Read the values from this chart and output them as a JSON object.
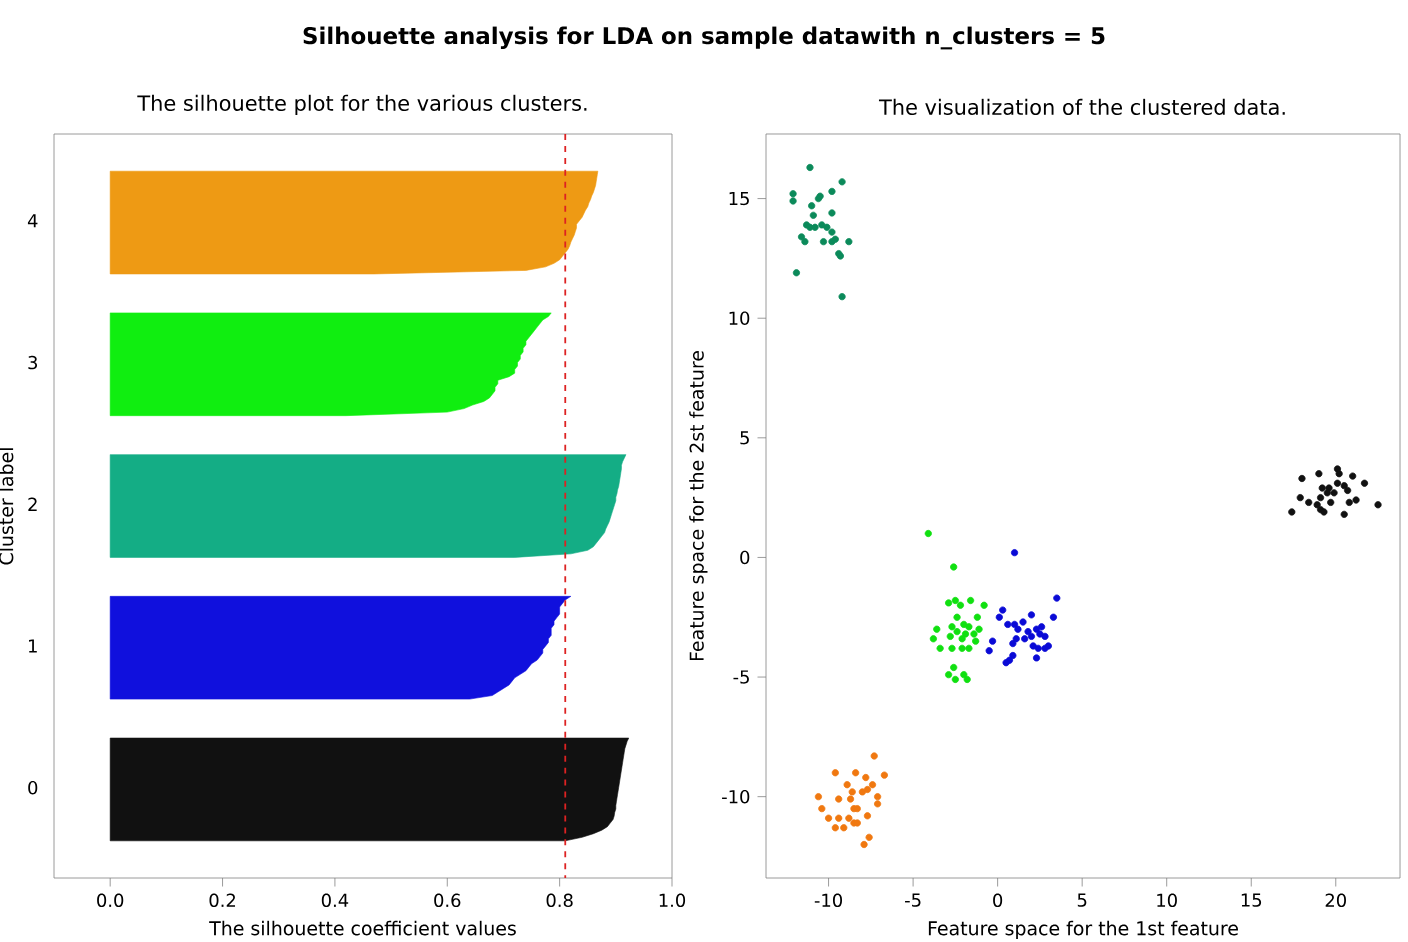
{
  "chart_data": [
    {
      "type": "area",
      "orientation": "horizontal",
      "title": "Silhouette analysis for LDA on sample datawith n_clusters = 5",
      "subtitle": "The silhouette plot for the various clusters.",
      "xlabel": "The silhouette coefficient values",
      "ylabel": "Cluster label",
      "xlim": [
        -0.1,
        1.0
      ],
      "xticks": [
        {
          "value": 0,
          "label": "0.0"
        },
        {
          "value": 0.2,
          "label": "0.2"
        },
        {
          "value": 0.4,
          "label": "0.4"
        },
        {
          "value": 0.6,
          "label": "0.6"
        },
        {
          "value": 0.8,
          "label": "0.8"
        },
        {
          "value": 1.0,
          "label": "1.0"
        }
      ],
      "categories": [
        null,
        null,
        null,
        null,
        null,
        null,
        null,
        null,
        null,
        null,
        null,
        null,
        null,
        null,
        null,
        null,
        null,
        null,
        null,
        null,
        null,
        null,
        null,
        null,
        "4",
        null,
        null,
        null,
        null,
        null,
        null,
        null,
        null,
        null,
        null,
        null,
        null,
        null,
        null,
        null,
        null,
        null,
        null,
        null,
        null,
        null,
        null,
        null,
        null,
        null,
        null,
        null,
        null,
        null,
        null,
        null,
        null,
        null,
        null,
        null,
        null,
        null,
        null,
        null,
        "3",
        null,
        null,
        null,
        null,
        null,
        null,
        null,
        null,
        null,
        null,
        null,
        null,
        null,
        null,
        null,
        null,
        null,
        null,
        null,
        null,
        null,
        null,
        null,
        null,
        null,
        null,
        null,
        null,
        null,
        null,
        null,
        null,
        null,
        null,
        null,
        null,
        null,
        null,
        null,
        "2",
        null,
        null,
        null,
        null,
        null,
        null,
        null,
        null,
        null,
        null,
        null,
        null,
        null,
        null,
        null,
        null,
        null,
        null,
        null,
        null,
        null,
        null,
        null,
        null,
        null,
        null,
        null,
        null,
        null,
        null,
        null,
        null,
        null,
        null,
        null,
        null,
        null,
        null,
        null,
        "1",
        null,
        null,
        null,
        null,
        null,
        null,
        null,
        null,
        null,
        null,
        null,
        null,
        null,
        null,
        null,
        null,
        null,
        null,
        null,
        null,
        null,
        null,
        null,
        null,
        null,
        null,
        null,
        null,
        null,
        null,
        null,
        null,
        null,
        null,
        null,
        null,
        null,
        null,
        null,
        "0",
        null,
        null,
        null,
        null,
        null,
        null,
        null,
        null,
        null,
        null,
        null,
        null,
        null,
        null,
        null,
        null,
        null,
        null,
        null,
        null,
        null,
        null,
        null,
        null,
        null
      ],
      "ref_lines": [
        {
          "axis": "x",
          "value": 0.81,
          "color": "#dd2222",
          "line_style": "dashed"
        }
      ],
      "series": [
        {
          "color": "#ee9a14",
          "values": [
            null,
            null,
            null,
            null,
            null,
            null,
            null,
            null,
            null,
            null,
            0.868,
            0.867,
            0.866,
            0.865,
            0.864,
            0.862,
            0.86,
            0.857,
            0.855,
            0.852,
            0.85,
            0.846,
            0.843,
            0.84,
            0.835,
            0.83,
            0.83,
            0.828,
            0.826,
            0.823,
            0.82,
            0.818,
            0.815,
            0.81,
            0.805,
            0.8,
            0.79,
            0.775,
            0.74,
            0.47,
            null,
            null,
            null,
            null,
            null,
            null,
            null,
            null,
            null,
            null,
            null,
            null,
            null,
            null,
            null,
            null,
            null,
            null,
            null,
            null,
            null,
            null,
            null,
            null,
            null,
            null,
            null,
            null,
            null,
            null,
            null,
            null,
            null,
            null,
            null,
            null,
            null,
            null,
            null,
            null,
            null,
            null,
            null,
            null,
            null,
            null,
            null,
            null,
            null,
            null,
            null,
            null,
            null,
            null,
            null,
            null,
            null,
            null,
            null,
            null,
            null,
            null,
            null,
            null,
            null,
            null,
            null,
            null,
            null,
            null,
            null,
            null,
            null,
            null,
            null,
            null,
            null,
            null,
            null,
            null,
            null,
            null,
            null,
            null,
            null,
            null,
            null,
            null,
            null,
            null,
            null,
            null,
            null,
            null,
            null,
            null,
            null,
            null,
            null,
            null,
            null,
            null,
            null,
            null,
            null,
            null,
            null,
            null,
            null,
            null,
            null,
            null,
            null,
            null,
            null,
            null,
            null,
            null,
            null,
            null,
            null,
            null,
            null,
            null,
            null,
            null,
            null,
            null,
            null,
            null,
            null,
            null,
            null,
            null,
            null,
            null,
            null,
            null,
            null,
            null,
            null,
            null,
            null,
            null,
            null,
            null,
            null,
            null,
            null,
            null,
            null,
            null,
            null,
            null,
            null,
            null,
            null,
            null,
            null,
            null,
            null,
            null,
            null,
            null,
            null,
            null,
            null,
            null,
            null,
            null
          ]
        },
        {
          "color": "#10ee10",
          "values": [
            null,
            null,
            null,
            null,
            null,
            null,
            null,
            null,
            null,
            null,
            null,
            null,
            null,
            null,
            null,
            null,
            null,
            null,
            null,
            null,
            null,
            null,
            null,
            null,
            null,
            null,
            null,
            null,
            null,
            null,
            null,
            null,
            null,
            null,
            null,
            null,
            null,
            null,
            null,
            null,
            null,
            null,
            null,
            null,
            null,
            null,
            null,
            null,
            null,
            null,
            0.785,
            0.78,
            0.77,
            0.765,
            0.76,
            0.755,
            0.75,
            0.745,
            0.74,
            0.74,
            0.735,
            0.735,
            0.73,
            0.73,
            0.725,
            0.725,
            0.72,
            0.72,
            0.71,
            0.69,
            0.69,
            0.685,
            0.685,
            0.68,
            0.675,
            0.665,
            0.645,
            0.63,
            0.6,
            0.42,
            null,
            null,
            null,
            null,
            null,
            null,
            null,
            null,
            null,
            null,
            null,
            null,
            null,
            null,
            null,
            null,
            null,
            null,
            null,
            null,
            null,
            null,
            null,
            null,
            null,
            null,
            null,
            null,
            null,
            null,
            null,
            null,
            null,
            null,
            null,
            null,
            null,
            null,
            null,
            null,
            null,
            null,
            null,
            null,
            null,
            null,
            null,
            null,
            null,
            null,
            null,
            null,
            null,
            null,
            null,
            null,
            null,
            null,
            null,
            null,
            null,
            null,
            null,
            null,
            null,
            null,
            null,
            null,
            null,
            null,
            null,
            null,
            null,
            null,
            null,
            null,
            null,
            null,
            null,
            null,
            null,
            null,
            null,
            null,
            null,
            null,
            null,
            null,
            null,
            null,
            null,
            null,
            null,
            null,
            null,
            null,
            null,
            null,
            null,
            null,
            null,
            null,
            null,
            null,
            null,
            null,
            null,
            null,
            null,
            null,
            null,
            null,
            null,
            null,
            null,
            null,
            null,
            null,
            null,
            null,
            null,
            null,
            null,
            null,
            null,
            null,
            null,
            null,
            null,
            null
          ]
        },
        {
          "color": "#14ad85",
          "values": [
            null,
            null,
            null,
            null,
            null,
            null,
            null,
            null,
            null,
            null,
            null,
            null,
            null,
            null,
            null,
            null,
            null,
            null,
            null,
            null,
            null,
            null,
            null,
            null,
            null,
            null,
            null,
            null,
            null,
            null,
            null,
            null,
            null,
            null,
            null,
            null,
            null,
            null,
            null,
            null,
            null,
            null,
            null,
            null,
            null,
            null,
            null,
            null,
            null,
            null,
            null,
            null,
            null,
            null,
            null,
            null,
            null,
            null,
            null,
            null,
            null,
            null,
            null,
            null,
            null,
            null,
            null,
            null,
            null,
            null,
            null,
            null,
            null,
            null,
            null,
            null,
            null,
            null,
            null,
            null,
            null,
            null,
            null,
            null,
            null,
            null,
            null,
            null,
            null,
            null,
            0.918,
            0.915,
            0.912,
            0.91,
            0.91,
            0.909,
            0.908,
            0.907,
            0.906,
            0.905,
            0.903,
            0.902,
            0.9,
            0.9,
            0.898,
            0.896,
            0.894,
            0.892,
            0.89,
            0.888,
            0.885,
            0.882,
            0.88,
            0.875,
            0.87,
            0.865,
            0.86,
            0.85,
            0.82,
            0.72,
            null,
            null,
            null,
            null,
            null,
            null,
            null,
            null,
            null,
            null,
            null,
            null,
            null,
            null,
            null,
            null,
            null,
            null,
            null,
            null,
            null,
            null,
            null,
            null,
            null,
            null,
            null,
            null,
            null,
            null,
            null,
            null,
            null,
            null,
            null,
            null,
            null,
            null,
            null,
            null,
            null,
            null,
            null,
            null,
            null,
            null,
            null,
            null,
            null,
            null,
            null,
            null,
            null,
            null,
            null,
            null,
            null,
            null,
            null,
            null,
            null,
            null,
            null,
            null,
            null,
            null,
            null,
            null,
            null,
            null,
            null,
            null,
            null,
            null,
            null,
            null,
            null,
            null,
            null,
            null,
            null,
            null,
            null,
            null,
            null,
            null,
            null,
            null,
            null,
            null
          ]
        },
        {
          "color": "#1010dd",
          "values": [
            null,
            null,
            null,
            null,
            null,
            null,
            null,
            null,
            null,
            null,
            null,
            null,
            null,
            null,
            null,
            null,
            null,
            null,
            null,
            null,
            null,
            null,
            null,
            null,
            null,
            null,
            null,
            null,
            null,
            null,
            null,
            null,
            null,
            null,
            null,
            null,
            null,
            null,
            null,
            null,
            null,
            null,
            null,
            null,
            null,
            null,
            null,
            null,
            null,
            null,
            null,
            null,
            null,
            null,
            null,
            null,
            null,
            null,
            null,
            null,
            null,
            null,
            null,
            null,
            null,
            null,
            null,
            null,
            null,
            null,
            null,
            null,
            null,
            null,
            null,
            null,
            null,
            null,
            null,
            null,
            null,
            null,
            null,
            null,
            null,
            null,
            null,
            null,
            null,
            null,
            null,
            null,
            null,
            null,
            null,
            null,
            null,
            null,
            null,
            null,
            null,
            null,
            null,
            null,
            null,
            null,
            null,
            null,
            null,
            null,
            null,
            null,
            null,
            null,
            null,
            null,
            null,
            null,
            null,
            null,
            null,
            null,
            null,
            null,
            null,
            null,
            null,
            null,
            null,
            null,
            0.82,
            0.81,
            0.805,
            0.8,
            0.8,
            0.8,
            0.795,
            0.79,
            0.79,
            0.785,
            0.785,
            0.785,
            0.78,
            0.78,
            0.775,
            0.77,
            0.77,
            0.765,
            0.76,
            0.75,
            0.745,
            0.74,
            0.73,
            0.72,
            0.715,
            0.71,
            0.7,
            0.69,
            0.68,
            0.64,
            null,
            null,
            null,
            null,
            null,
            null,
            null,
            null,
            null,
            null,
            null,
            null,
            null,
            null,
            null,
            null,
            null,
            null,
            null,
            null,
            null,
            null,
            null,
            null,
            null,
            null,
            null,
            null,
            null,
            null,
            null,
            null,
            null,
            null,
            null,
            null,
            null,
            null,
            null,
            null,
            null,
            null,
            null,
            null,
            null,
            null,
            null,
            null,
            null,
            null
          ]
        },
        {
          "color": "#111111",
          "values": [
            null,
            null,
            null,
            null,
            null,
            null,
            null,
            null,
            null,
            null,
            null,
            null,
            null,
            null,
            null,
            null,
            null,
            null,
            null,
            null,
            null,
            null,
            null,
            null,
            null,
            null,
            null,
            null,
            null,
            null,
            null,
            null,
            null,
            null,
            null,
            null,
            null,
            null,
            null,
            null,
            null,
            null,
            null,
            null,
            null,
            null,
            null,
            null,
            null,
            null,
            null,
            null,
            null,
            null,
            null,
            null,
            null,
            null,
            null,
            null,
            null,
            null,
            null,
            null,
            null,
            null,
            null,
            null,
            null,
            null,
            null,
            null,
            null,
            null,
            null,
            null,
            null,
            null,
            null,
            null,
            null,
            null,
            null,
            null,
            null,
            null,
            null,
            null,
            null,
            null,
            null,
            null,
            null,
            null,
            null,
            null,
            null,
            null,
            null,
            null,
            null,
            null,
            null,
            null,
            null,
            null,
            null,
            null,
            null,
            null,
            null,
            null,
            null,
            null,
            null,
            null,
            null,
            null,
            null,
            null,
            null,
            null,
            null,
            null,
            null,
            null,
            null,
            null,
            null,
            null,
            null,
            null,
            null,
            null,
            null,
            null,
            null,
            null,
            null,
            null,
            null,
            null,
            null,
            null,
            null,
            null,
            null,
            null,
            null,
            null,
            null,
            null,
            null,
            null,
            null,
            null,
            null,
            null,
            null,
            null,
            null,
            null,
            null,
            null,
            null,
            null,
            null,
            null,
            null,
            null,
            0.923,
            0.92,
            0.918,
            0.916,
            0.915,
            0.914,
            0.913,
            0.912,
            0.911,
            0.91,
            0.909,
            0.908,
            0.907,
            0.906,
            0.905,
            0.904,
            0.903,
            0.902,
            0.901,
            0.9,
            0.9,
            0.898,
            0.897,
            0.895,
            0.89,
            0.885,
            0.875,
            0.86,
            0.84,
            0.81,
            null,
            null,
            null,
            null,
            null,
            null,
            null,
            null,
            null,
            null
          ]
        }
      ]
    },
    {
      "type": "scatter",
      "title": "The visualization of the clustered data.",
      "xlabel": "Feature space for the 1st feature",
      "ylabel": "Feature space for the 2st feature",
      "xlim": [
        -13.7,
        23.8
      ],
      "ylim": [
        -13.4,
        17.7
      ],
      "xticks": [
        -10,
        -5,
        0,
        5,
        10,
        15,
        20
      ],
      "yticks": [
        -10,
        -5,
        0,
        5,
        10,
        15
      ],
      "marker": "circle",
      "series": [
        {
          "color": "#111111",
          "x": [
            18.0,
            19.0,
            20.1,
            20.2,
            21.0,
            21.7,
            17.9,
            18.4,
            19.1,
            19.2,
            19.6,
            19.9,
            20.1,
            20.5,
            20.7,
            21.2,
            20.8,
            19.7,
            19.1,
            19.3,
            17.4,
            20.5,
            22.5,
            18.9,
            19.5
          ],
          "values": [
            3.3,
            3.5,
            3.7,
            3.5,
            3.4,
            3.1,
            2.5,
            2.3,
            2.5,
            2.9,
            2.9,
            2.7,
            3.1,
            3.0,
            2.8,
            2.4,
            2.3,
            2.3,
            2.0,
            1.9,
            1.9,
            1.8,
            2.2,
            2.2,
            2.7
          ]
        },
        {
          "color": "#0a0ad6",
          "x": [
            1.0,
            3.5,
            0.3,
            0.1,
            2.0,
            3.3,
            1.5,
            1.0,
            0.6,
            2.6,
            1.2,
            1.8,
            2.3,
            2.5,
            2.8,
            2.0,
            1.6,
            1.1,
            0.9,
            -0.3,
            -0.5,
            2.1,
            2.4,
            3.0,
            2.8,
            0.9,
            0.7,
            0.5,
            2.3
          ],
          "values": [
            0.2,
            -1.7,
            -2.2,
            -2.5,
            -2.4,
            -2.5,
            -2.7,
            -2.8,
            -2.8,
            -2.9,
            -3.0,
            -3.1,
            -3.0,
            -3.2,
            -3.3,
            -3.3,
            -3.4,
            -3.4,
            -3.6,
            -3.5,
            -3.9,
            -3.7,
            -3.8,
            -3.7,
            -3.8,
            -4.1,
            -4.3,
            -4.4,
            -4.2
          ]
        },
        {
          "color": "#0b8a5a",
          "x": [
            -11.1,
            -9.2,
            -12.1,
            -9.8,
            -12.1,
            -10.5,
            -10.6,
            -11.0,
            -9.8,
            -10.9,
            -11.3,
            -11.1,
            -10.4,
            -10.1,
            -9.8,
            -10.8,
            -11.6,
            -11.4,
            -10.3,
            -9.8,
            -9.6,
            -8.8,
            -9.4,
            -9.3,
            -11.9,
            -9.2
          ],
          "values": [
            16.3,
            15.7,
            15.2,
            15.3,
            14.9,
            15.1,
            15.0,
            14.7,
            14.4,
            14.3,
            13.9,
            13.8,
            13.9,
            13.8,
            13.6,
            13.8,
            13.4,
            13.2,
            13.2,
            13.2,
            13.3,
            13.2,
            12.7,
            12.6,
            11.9,
            10.9
          ]
        },
        {
          "color": "#10e010",
          "x": [
            -4.1,
            -2.6,
            -2.9,
            -2.5,
            -1.6,
            -0.8,
            -2.2,
            -2.4,
            -1.2,
            -2.0,
            -2.7,
            -3.6,
            -1.7,
            -1.1,
            -2.4,
            -1.9,
            -1.4,
            -3.8,
            -2.8,
            -2.1,
            -1.3,
            -2.7,
            -3.4,
            -1.7,
            -2.1,
            -2.6,
            -2.9,
            -2.0,
            -2.5,
            -1.8
          ],
          "values": [
            1.0,
            -0.4,
            -1.9,
            -1.8,
            -1.8,
            -2.0,
            -2.0,
            -2.5,
            -2.5,
            -2.8,
            -2.9,
            -3.0,
            -2.9,
            -3.0,
            -3.1,
            -3.2,
            -3.2,
            -3.4,
            -3.3,
            -3.4,
            -3.5,
            -3.8,
            -3.8,
            -3.8,
            -3.8,
            -4.6,
            -4.9,
            -4.9,
            -5.1,
            -5.1
          ]
        },
        {
          "color": "#f07810",
          "x": [
            -7.3,
            -9.6,
            -8.4,
            -6.7,
            -8.9,
            -7.8,
            -7.4,
            -8.0,
            -8.6,
            -7.7,
            -10.6,
            -9.4,
            -8.7,
            -7.1,
            -7.1,
            -8.5,
            -8.3,
            -10.4,
            -10.0,
            -7.7,
            -8.8,
            -9.4,
            -8.5,
            -8.3,
            -9.6,
            -9.1,
            -7.6,
            -7.9
          ],
          "values": [
            -8.3,
            -9.0,
            -9.0,
            -9.1,
            -9.5,
            -9.2,
            -9.5,
            -9.8,
            -9.8,
            -9.7,
            -10.0,
            -10.1,
            -10.1,
            -10.0,
            -10.3,
            -10.5,
            -10.5,
            -10.5,
            -10.9,
            -10.8,
            -10.9,
            -10.9,
            -11.1,
            -11.1,
            -11.3,
            -11.3,
            -11.7,
            -12.0
          ]
        }
      ]
    }
  ]
}
